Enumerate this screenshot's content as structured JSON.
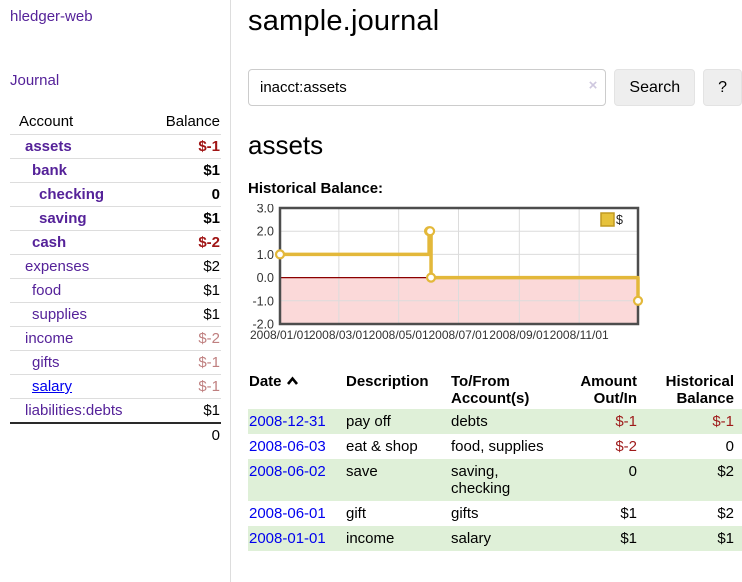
{
  "sidebar": {
    "brand": "hledger-web",
    "journal_link": "Journal",
    "accounts_table": {
      "headers": {
        "account": "Account",
        "balance": "Balance"
      },
      "rows": [
        {
          "name": "assets",
          "balance": "$-1",
          "level": 1,
          "bold": true,
          "balance_style": "neg-strong"
        },
        {
          "name": "bank",
          "balance": "$1",
          "level": 2,
          "bold": true,
          "balance_style": "pos"
        },
        {
          "name": "checking",
          "balance": "0",
          "level": 3,
          "bold": true,
          "balance_style": "pos"
        },
        {
          "name": "saving",
          "balance": "$1",
          "level": 3,
          "bold": true,
          "balance_style": "pos"
        },
        {
          "name": "cash",
          "balance": "$-2",
          "level": 2,
          "bold": true,
          "balance_style": "neg-strong"
        },
        {
          "name": "expenses",
          "balance": "$2",
          "level": 1,
          "bold": false,
          "balance_style": "pos"
        },
        {
          "name": "food",
          "balance": "$1",
          "level": 2,
          "bold": false,
          "balance_style": "pos"
        },
        {
          "name": "supplies",
          "balance": "$1",
          "level": 2,
          "bold": false,
          "balance_style": "pos"
        },
        {
          "name": "income",
          "balance": "$-2",
          "level": 1,
          "bold": false,
          "balance_style": "neg-muted"
        },
        {
          "name": "gifts",
          "balance": "$-1",
          "level": 2,
          "bold": false,
          "balance_style": "neg-muted"
        },
        {
          "name": "salary",
          "balance": "$-1",
          "level": 2,
          "bold": false,
          "balance_style": "neg-muted",
          "link_color": "blue"
        },
        {
          "name": "liabilities:debts",
          "balance": "$1",
          "level": 1,
          "bold": false,
          "balance_style": "pos"
        }
      ],
      "total": "0"
    }
  },
  "header": {
    "title": "sample.journal"
  },
  "search": {
    "query": "inacct:assets",
    "clear_icon": "×",
    "button_label": "Search",
    "help_label": "?"
  },
  "account_page": {
    "heading": "assets",
    "chart_label": "Historical Balance:"
  },
  "chart_data": {
    "type": "line",
    "step": true,
    "title": "Historical Balance:",
    "xrange": [
      "2008-01-01",
      "2008-12-31"
    ],
    "ylim": [
      -2,
      3
    ],
    "yticks": [
      "3.0",
      "2.0",
      "1.0",
      "0.0",
      "-1.0",
      "-2.0"
    ],
    "xticks": [
      "2008/01/01",
      "2008/03/01",
      "2008/05/01",
      "2008/07/01",
      "2008/09/01",
      "2008/11/01"
    ],
    "grid": true,
    "legend_position": "top-right",
    "series": [
      {
        "name": "$",
        "color": "#e3b83a",
        "points": [
          [
            "2008-01-01",
            1
          ],
          [
            "2008-06-01",
            2
          ],
          [
            "2008-06-02",
            2
          ],
          [
            "2008-06-03",
            0
          ],
          [
            "2008-12-31",
            -1
          ]
        ]
      }
    ],
    "negative_region_fill": "#fbd9d9",
    "zero_line_color": "#8b0000",
    "frame_color": "#4d4d4d",
    "gridline_color": "#dcdcdc",
    "legend": [
      {
        "label": "$",
        "color": "#e6c23c",
        "border": "#c09a22"
      }
    ]
  },
  "transactions": {
    "columns": [
      {
        "label": "Date",
        "sortable": true,
        "sort": "asc"
      },
      {
        "label": "Description"
      },
      {
        "label": "To/From Account(s)"
      },
      {
        "label": "Amount Out/In",
        "align": "right"
      },
      {
        "label": "Historical Balance",
        "align": "right"
      }
    ],
    "rows": [
      {
        "date": "2008-12-31",
        "description": "pay off",
        "accounts": "debts",
        "amount": "$-1",
        "amount_neg": true,
        "balance": "$-1",
        "balance_neg": true
      },
      {
        "date": "2008-06-03",
        "description": "eat & shop",
        "accounts": "food, supplies",
        "amount": "$-2",
        "amount_neg": true,
        "balance": "0",
        "balance_neg": false
      },
      {
        "date": "2008-06-02",
        "description": "save",
        "accounts": "saving, checking",
        "amount": "0",
        "amount_neg": false,
        "balance": "$2",
        "balance_neg": false
      },
      {
        "date": "2008-06-01",
        "description": "gift",
        "accounts": "gifts",
        "amount": "$1",
        "amount_neg": false,
        "balance": "$2",
        "balance_neg": false
      },
      {
        "date": "2008-01-01",
        "description": "income",
        "accounts": "salary",
        "amount": "$1",
        "amount_neg": false,
        "balance": "$1",
        "balance_neg": false
      }
    ]
  },
  "colors": {
    "link_purple": "#552299",
    "link_blue": "#0000ee",
    "negative_strong": "#a01515",
    "negative_muted": "#bf7f7f",
    "negative_txn": "#9e1a1a",
    "row_stripe_green": "#dff0d8",
    "chart_line_gold": "#e3b83a",
    "chart_negative_pink": "#fbd9d9",
    "button_gray": "#eeeeee"
  }
}
